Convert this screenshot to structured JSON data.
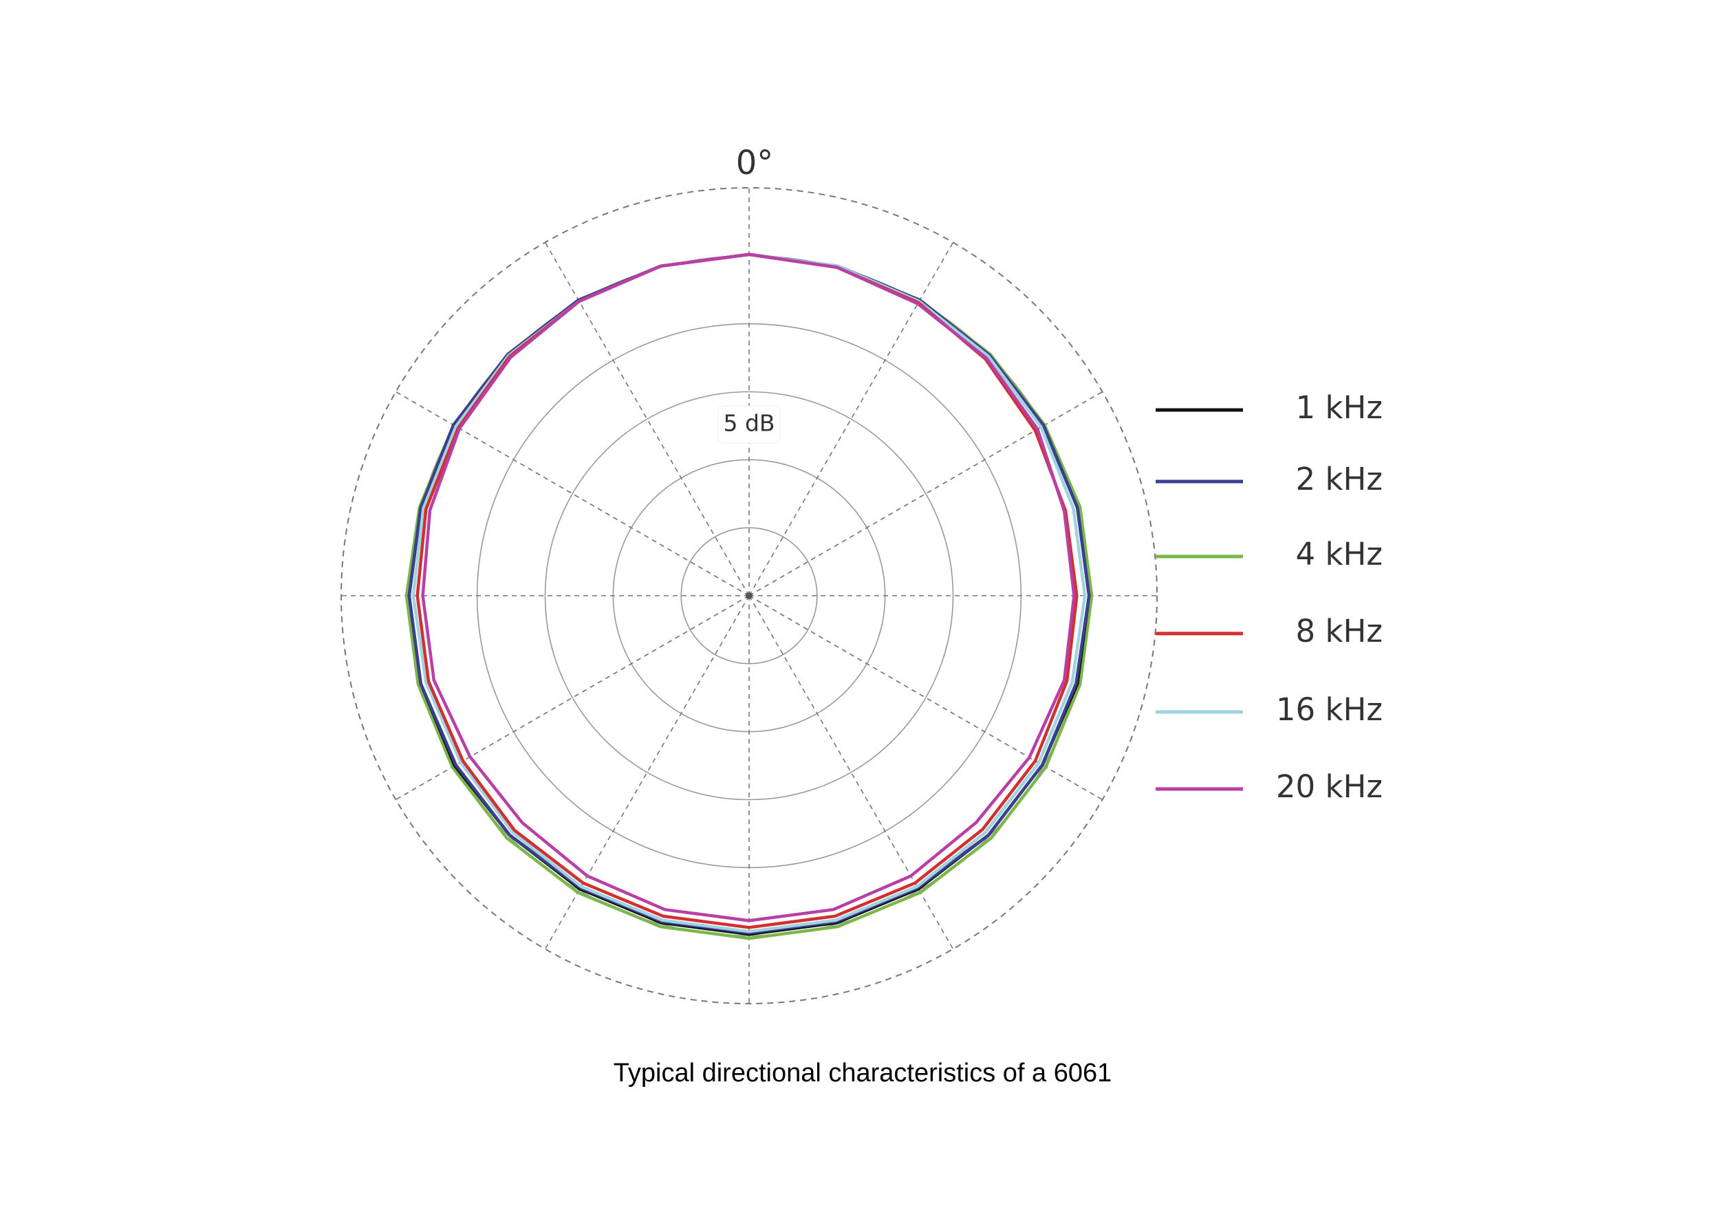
{
  "chart_data": {
    "type": "polar",
    "angle_label": "0°",
    "scale_label": "5 dB",
    "caption": "Typical directional characteristics of a 6061",
    "rlim": [
      -30,
      0
    ],
    "rticks": [
      -25,
      -20,
      -15,
      -10,
      -5,
      0
    ],
    "thetaticks": [
      0,
      30,
      60,
      90,
      120,
      150,
      180,
      210,
      240,
      270,
      300,
      330
    ],
    "theta": [
      0,
      15,
      30,
      45,
      60,
      75,
      90,
      105,
      120,
      135,
      150,
      165,
      180,
      195,
      210,
      225,
      240,
      255,
      270,
      285,
      300,
      315,
      330,
      345
    ],
    "series": [
      {
        "name": "1 kHz",
        "color": "#111111",
        "values": [
          -4.9,
          -4.9,
          -4.9,
          -5.0,
          -5.0,
          -5.0,
          -5.0,
          -5.0,
          -5.1,
          -5.1,
          -5.1,
          -5.1,
          -5.1,
          -5.1,
          -5.1,
          -5.1,
          -5.0,
          -5.0,
          -5.0,
          -5.0,
          -4.9,
          -4.9,
          -4.9,
          -4.9
        ]
      },
      {
        "name": "2 kHz",
        "color": "#3b3f8f",
        "values": [
          -4.9,
          -4.9,
          -4.9,
          -5.0,
          -5.0,
          -5.0,
          -5.0,
          -5.1,
          -5.1,
          -5.1,
          -5.2,
          -5.2,
          -5.2,
          -5.2,
          -5.2,
          -5.1,
          -5.1,
          -5.0,
          -5.0,
          -5.0,
          -4.9,
          -4.9,
          -4.9,
          -4.9
        ]
      },
      {
        "name": "4 kHz",
        "color": "#7ab648",
        "values": [
          -4.9,
          -4.9,
          -4.9,
          -4.9,
          -4.9,
          -4.8,
          -4.8,
          -4.8,
          -4.8,
          -4.8,
          -4.8,
          -4.8,
          -4.8,
          -4.8,
          -4.8,
          -4.8,
          -4.8,
          -4.8,
          -4.8,
          -4.9,
          -4.9,
          -4.9,
          -4.9,
          -4.9
        ]
      },
      {
        "name": "8 kHz",
        "color": "#d32f2f",
        "values": [
          -4.9,
          -5.0,
          -5.1,
          -5.4,
          -5.7,
          -5.9,
          -5.9,
          -5.8,
          -5.7,
          -5.7,
          -5.6,
          -5.6,
          -5.6,
          -5.6,
          -5.6,
          -5.6,
          -5.7,
          -5.6,
          -5.6,
          -5.4,
          -5.3,
          -5.1,
          -5.0,
          -4.9
        ]
      },
      {
        "name": "16 kHz",
        "color": "#9fd3e0",
        "values": [
          -4.9,
          -4.9,
          -5.0,
          -5.1,
          -5.2,
          -5.3,
          -5.3,
          -5.4,
          -5.4,
          -5.4,
          -5.3,
          -5.3,
          -5.3,
          -5.3,
          -5.3,
          -5.4,
          -5.5,
          -5.4,
          -5.3,
          -5.2,
          -5.1,
          -5.0,
          -5.0,
          -4.9
        ]
      },
      {
        "name": "20 kHz",
        "color": "#b83fa6",
        "values": [
          -4.9,
          -5.0,
          -5.2,
          -5.3,
          -5.5,
          -6.0,
          -6.1,
          -6.0,
          -6.2,
          -6.4,
          -6.2,
          -6.1,
          -6.1,
          -6.1,
          -6.2,
          -6.4,
          -6.3,
          -6.0,
          -6.0,
          -5.7,
          -5.4,
          -5.2,
          -5.0,
          -4.9
        ]
      }
    ]
  }
}
